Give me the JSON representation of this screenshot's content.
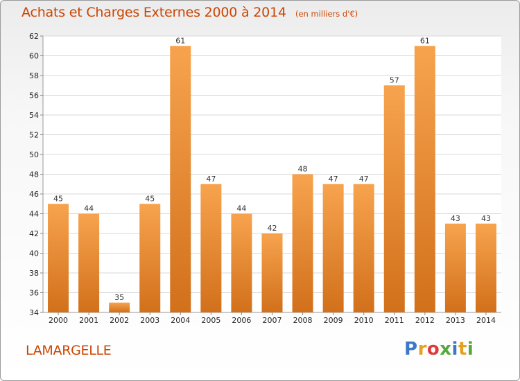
{
  "header": {
    "title": "Achats et Charges Externes 2000 à 2014",
    "unit": "(en milliers d'€)"
  },
  "footer": {
    "commune": "LAMARGELLE",
    "logo_text": "Proxiti",
    "logo_colors": [
      "#3d78c8",
      "#e6a020",
      "#e03a3a",
      "#52a83a",
      "#3d78c8",
      "#e6a020",
      "#52a83a"
    ]
  },
  "colors": {
    "bar_light": "#f7a34e",
    "bar_dark": "#d2701b",
    "grid": "#d8d8d8",
    "accent": "#cc4400"
  },
  "chart_data": {
    "type": "bar",
    "title": "Achats et Charges Externes 2000 à 2014",
    "subtitle": "(en milliers d'€)",
    "categories": [
      "2000",
      "2001",
      "2002",
      "2003",
      "2004",
      "2005",
      "2006",
      "2007",
      "2008",
      "2009",
      "2010",
      "2011",
      "2012",
      "2013",
      "2014"
    ],
    "values": [
      45,
      44,
      35,
      45,
      61,
      47,
      44,
      42,
      48,
      47,
      47,
      57,
      61,
      43,
      43
    ],
    "ylim": [
      34,
      62
    ],
    "yticks": [
      34,
      36,
      38,
      40,
      42,
      44,
      46,
      48,
      50,
      52,
      54,
      56,
      58,
      60,
      62
    ],
    "grid": true
  }
}
